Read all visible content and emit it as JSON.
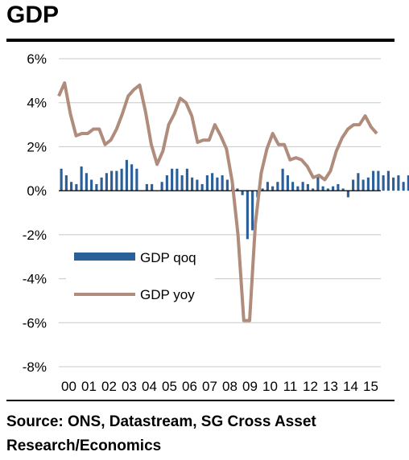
{
  "title": "GDP",
  "source": "Source: ONS, Datastream, SG Cross Asset Research/Economics",
  "colors": {
    "qoq": "#2b5f97",
    "yoy": "#b08c7c",
    "grid": "#c8c8c8"
  },
  "chart_data": {
    "type": "bar+line",
    "title": "GDP",
    "xlabel": "",
    "ylabel": "",
    "ylim": [
      -8,
      6
    ],
    "yticks": [
      "6%",
      "4%",
      "2%",
      "0%",
      "-2%",
      "-4%",
      "-6%",
      "-8%"
    ],
    "ytick_values": [
      6,
      4,
      2,
      0,
      -2,
      -4,
      -6,
      -8
    ],
    "xticks": [
      "00",
      "01",
      "02",
      "03",
      "04",
      "05",
      "06",
      "07",
      "08",
      "09",
      "10",
      "11",
      "12",
      "13",
      "14",
      "15"
    ],
    "grid": true,
    "legend": {
      "placement": "lower-left",
      "entries": [
        "GDP qoq",
        "GDP yoy"
      ]
    },
    "x_start": 2000.0,
    "x_step": 0.25,
    "series": [
      {
        "name": "GDP qoq",
        "kind": "bar",
        "values": [
          1.0,
          0.7,
          0.4,
          0.3,
          1.1,
          0.8,
          0.5,
          0.3,
          0.6,
          0.8,
          0.9,
          0.9,
          1.0,
          1.4,
          1.2,
          1.0,
          0.0,
          0.3,
          0.3,
          0.0,
          0.4,
          0.7,
          1.0,
          1.0,
          0.7,
          1.0,
          0.6,
          0.5,
          0.3,
          0.7,
          0.8,
          0.6,
          0.7,
          0.5,
          0.4,
          0.1,
          -0.2,
          -2.2,
          -1.8,
          -0.3,
          0.1,
          0.4,
          0.2,
          0.4,
          1.0,
          0.7,
          0.4,
          0.2,
          0.4,
          0.3,
          0.1,
          0.7,
          0.2,
          0.1,
          0.2,
          0.3,
          0.1,
          -0.3,
          0.5,
          0.8,
          0.5,
          0.6,
          0.9,
          0.9,
          0.7,
          0.9,
          0.6,
          0.7,
          0.4,
          0.7
        ]
      },
      {
        "name": "GDP yoy",
        "kind": "line",
        "values": [
          4.3,
          4.9,
          3.5,
          2.5,
          2.6,
          2.6,
          2.8,
          2.8,
          2.1,
          2.3,
          2.8,
          3.5,
          4.3,
          4.6,
          4.8,
          3.6,
          2.1,
          1.2,
          1.8,
          3.0,
          3.5,
          4.2,
          4.0,
          3.4,
          2.2,
          2.3,
          2.3,
          3.0,
          2.5,
          1.9,
          0.4,
          -2.0,
          -5.9,
          -5.9,
          -1.5,
          0.8,
          1.9,
          2.6,
          2.1,
          2.1,
          1.4,
          1.5,
          1.4,
          1.1,
          0.6,
          0.7,
          0.5,
          0.9,
          1.8,
          2.4,
          2.8,
          3.0,
          3.0,
          3.4,
          2.9,
          2.6
        ]
      }
    ]
  }
}
